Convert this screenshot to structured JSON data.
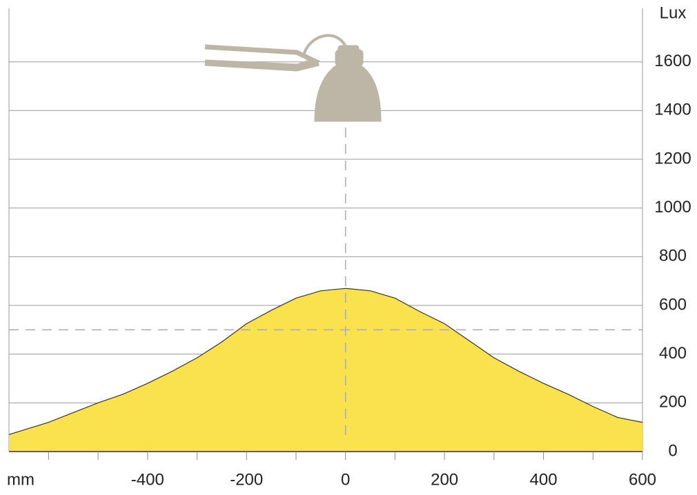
{
  "chart_data": {
    "type": "area",
    "x_label": "mm",
    "y_label": "Lux",
    "x": [
      -680,
      -600,
      -550,
      -500,
      -450,
      -400,
      -350,
      -300,
      -250,
      -200,
      -150,
      -100,
      -50,
      0,
      50,
      100,
      150,
      200,
      250,
      300,
      350,
      400,
      450,
      500,
      550,
      600
    ],
    "values": [
      70,
      120,
      160,
      200,
      235,
      280,
      330,
      385,
      450,
      525,
      580,
      630,
      660,
      670,
      660,
      630,
      575,
      525,
      455,
      385,
      330,
      280,
      235,
      185,
      140,
      120
    ],
    "color": "#f9e24d",
    "xlim": [
      -680,
      600
    ],
    "ylim": [
      0,
      1820
    ],
    "xticks": [
      -400,
      -200,
      0,
      200,
      400,
      600
    ],
    "x_minor_ticks": [
      -600,
      -500,
      -300,
      -100,
      100,
      300,
      500
    ],
    "yticks": [
      0,
      200,
      400,
      600,
      800,
      1000,
      1200,
      1400,
      1600
    ],
    "reference_x": 0,
    "reference_y": 500,
    "grid": true
  }
}
